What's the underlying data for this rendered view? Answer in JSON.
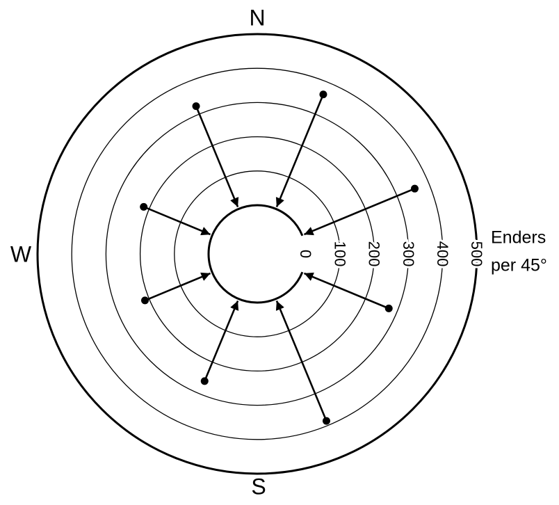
{
  "chart_data": {
    "type": "polar-arrow",
    "compass": [
      "N",
      "W",
      "S"
    ],
    "rlabel": [
      "Enders",
      "per 45°"
    ],
    "x": [
      22.5,
      67.5,
      112.5,
      157.5,
      202.5,
      247.5,
      292.5,
      337.5
    ],
    "values": [
      362,
      356,
      274,
      386,
      260,
      213,
      217,
      325
    ],
    "rlim": [
      0,
      500
    ],
    "rticks": [
      0,
      100,
      200,
      300,
      400,
      500
    ],
    "color": "#000000"
  }
}
